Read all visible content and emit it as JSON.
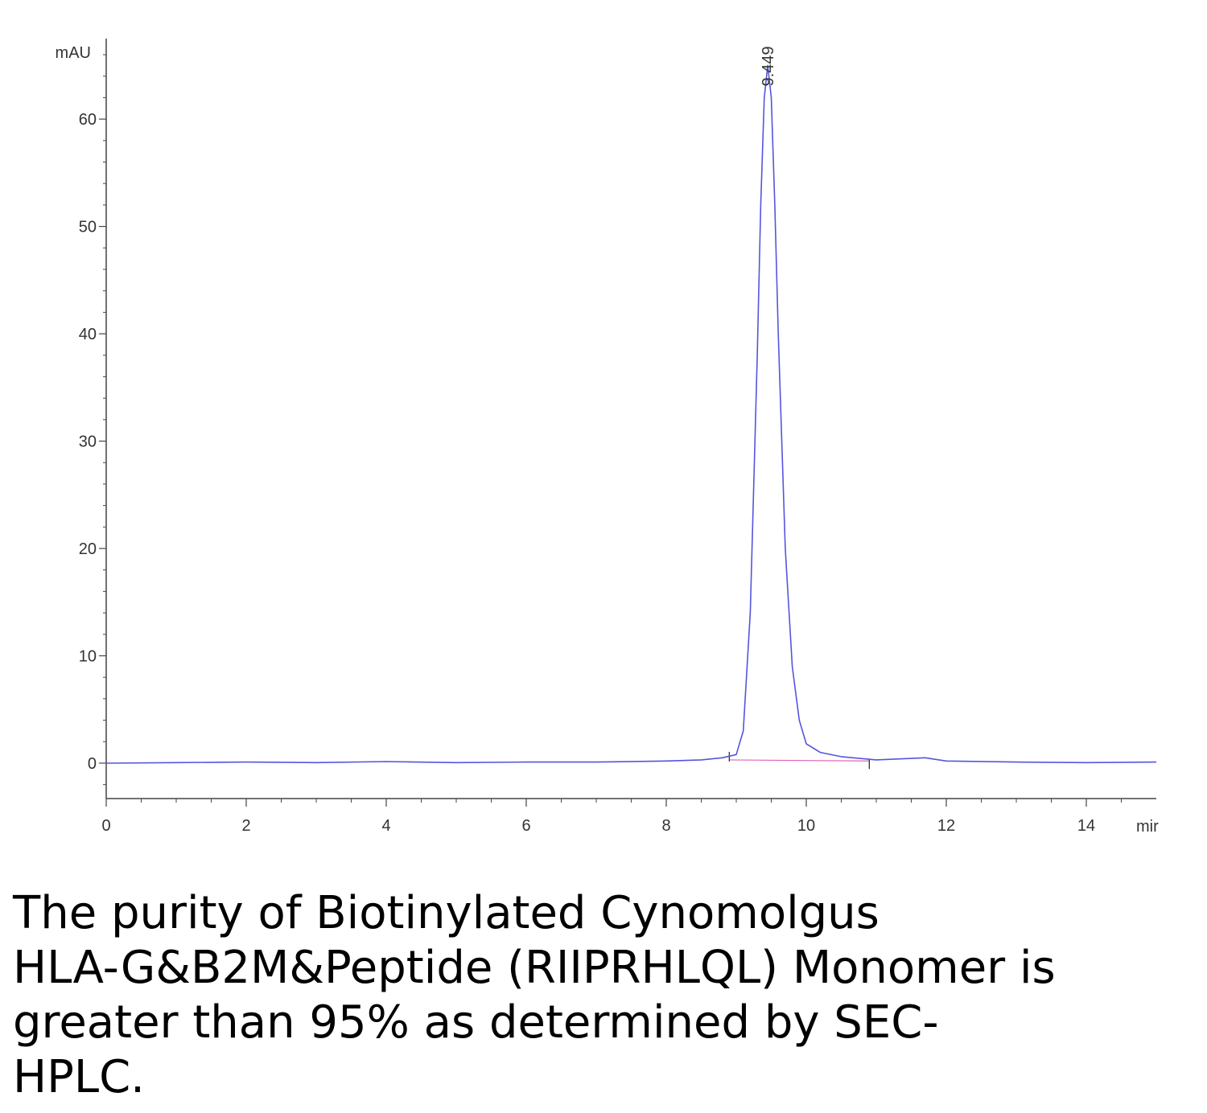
{
  "chart_data": {
    "type": "line",
    "title": "",
    "ylabel": "mAU",
    "xlabel": "mir",
    "xlim": [
      0,
      15
    ],
    "ylim": [
      -3.3,
      67.5
    ],
    "x_ticks": [
      0,
      2,
      4,
      6,
      8,
      10,
      12,
      14
    ],
    "x_tick_labels": [
      "0",
      "2",
      "4",
      "6",
      "8",
      "10",
      "12",
      "14"
    ],
    "y_ticks": [
      0,
      10,
      20,
      30,
      40,
      50,
      60
    ],
    "y_tick_labels": [
      "0",
      "10",
      "20",
      "30",
      "40",
      "50",
      "60"
    ],
    "grid": false,
    "series": [
      {
        "color": "#5555dd",
        "x": [
          0,
          1,
          2,
          3,
          4,
          5,
          6,
          7,
          8,
          8.5,
          8.8,
          9.0,
          9.1,
          9.2,
          9.3,
          9.35,
          9.4,
          9.449,
          9.5,
          9.55,
          9.6,
          9.7,
          9.8,
          9.9,
          10.0,
          10.2,
          10.5,
          11.0,
          11.7,
          12.0,
          13.0,
          14.0,
          15.0
        ],
        "y": [
          0,
          0.05,
          0.1,
          0.05,
          0.15,
          0.05,
          0.1,
          0.1,
          0.2,
          0.3,
          0.5,
          0.8,
          3,
          14,
          38,
          52,
          62,
          65,
          62,
          52,
          40,
          20,
          9,
          4,
          1.8,
          1.0,
          0.6,
          0.3,
          0.5,
          0.2,
          0.1,
          0.05,
          0.1
        ]
      }
    ],
    "baseline": {
      "color": "#e060c0",
      "x": [
        8.9,
        10.9
      ],
      "y": [
        0.3,
        0.2
      ]
    },
    "annotations": [
      {
        "text": "9.449",
        "x": 9.449,
        "y": 65
      }
    ]
  },
  "caption": "The purity of Biotinylated Cynomolgus\nHLA-G&B2M&Peptide (RIIPRHLQL) Monomer is\ngreater than 95% as determined by SEC-\nHPLC."
}
